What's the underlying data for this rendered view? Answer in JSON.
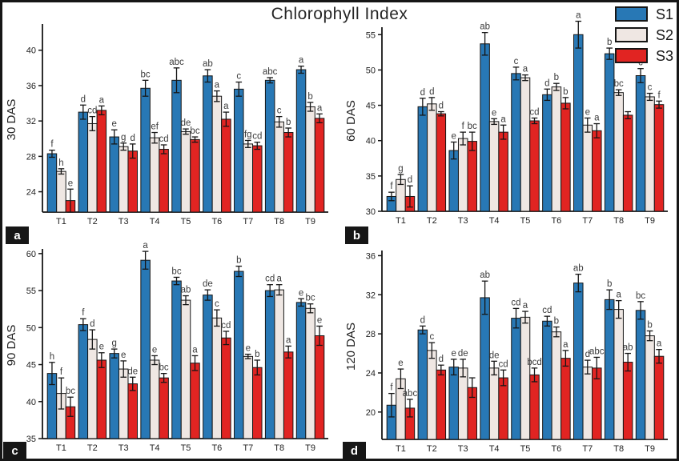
{
  "figure": {
    "title": "Chlorophyll Index"
  },
  "chart_data": {
    "type": "bar",
    "grouped": true,
    "title": "Chlorophyll Index",
    "categories": [
      "T1",
      "T2",
      "T3",
      "T4",
      "T5",
      "T6",
      "T7",
      "T8",
      "T9"
    ],
    "legend": {
      "entries": [
        "S1",
        "S2",
        "S3"
      ],
      "position": "top-right"
    },
    "series_colors": {
      "S1": "#2878B5",
      "S2": "#EFE7E3",
      "S3": "#E12422"
    },
    "error_bars": true,
    "panels": [
      {
        "id": "a",
        "panel_letter": "a",
        "ylabel": "30 DAS",
        "ylim": [
          21.7,
          42.6
        ],
        "yticks": [
          24,
          28,
          32,
          36,
          40
        ],
        "series": [
          {
            "name": "S1",
            "values": [
              28.3,
              33.0,
              30.2,
              35.7,
              36.6,
              37.1,
              35.6,
              36.6,
              37.8
            ],
            "errors": [
              0.4,
              0.8,
              0.8,
              0.9,
              1.4,
              0.7,
              0.8,
              0.3,
              0.4
            ],
            "letters": [
              "f",
              "d",
              "e",
              "bc",
              "abc",
              "ab",
              "c",
              "abc",
              "a"
            ]
          },
          {
            "name": "S2",
            "values": [
              26.3,
              31.7,
              29.1,
              30.1,
              30.8,
              34.8,
              29.4,
              31.9,
              33.6
            ],
            "errors": [
              0.3,
              0.8,
              0.4,
              0.6,
              0.3,
              0.6,
              0.4,
              0.6,
              0.5
            ],
            "letters": [
              "h",
              "cd",
              "g",
              "ef",
              "de",
              "a",
              "fg",
              "c",
              "b"
            ]
          },
          {
            "name": "S3",
            "values": [
              23.0,
              33.2,
              28.6,
              28.8,
              29.9,
              32.2,
              29.2,
              30.7,
              32.3
            ],
            "errors": [
              1.3,
              0.5,
              0.8,
              0.5,
              0.3,
              0.8,
              0.4,
              0.5,
              0.5
            ],
            "letters": [
              "e",
              "a",
              "d",
              "cd",
              "bc",
              "a",
              "cd",
              "b",
              "a"
            ]
          }
        ]
      },
      {
        "id": "b",
        "panel_letter": "b",
        "ylabel": "60 DAS",
        "ylim": [
          30,
          55.6
        ],
        "yticks": [
          30,
          35,
          40,
          45,
          50,
          55
        ],
        "series": [
          {
            "name": "S1",
            "values": [
              32.1,
              44.8,
              38.6,
              53.7,
              49.5,
              46.5,
              55.0,
              52.3,
              49.2
            ],
            "errors": [
              0.6,
              1.2,
              1.2,
              1.6,
              0.9,
              0.8,
              1.9,
              0.8,
              1.0
            ],
            "letters": [
              "f",
              "d",
              "e",
              "ab",
              "c",
              "d",
              "a",
              "b",
              "c"
            ]
          },
          {
            "name": "S2",
            "values": [
              34.5,
              45.2,
              40.3,
              42.7,
              48.9,
              47.6,
              42.2,
              46.8,
              46.2
            ],
            "errors": [
              0.7,
              0.9,
              0.9,
              0.4,
              0.4,
              0.5,
              1.0,
              0.4,
              0.5
            ],
            "letters": [
              "g",
              "d",
              "f",
              "e",
              "a",
              "b",
              "e",
              "bc",
              "c"
            ]
          },
          {
            "name": "S3",
            "values": [
              32.1,
              43.8,
              39.9,
              41.2,
              42.8,
              45.3,
              41.4,
              43.6,
              45.1
            ],
            "errors": [
              1.5,
              0.3,
              1.3,
              1.0,
              0.4,
              0.8,
              1.0,
              0.5,
              0.5
            ],
            "letters": [
              "d",
              "d",
              "bc",
              "a",
              "cd",
              "b",
              "a",
              "",
              "f"
            ]
          }
        ]
      },
      {
        "id": "c",
        "panel_letter": "c",
        "ylabel": "90 DAS",
        "ylim": [
          35,
          60.2
        ],
        "yticks": [
          35,
          40,
          45,
          50,
          55,
          60
        ],
        "series": [
          {
            "name": "S1",
            "values": [
              43.8,
              50.4,
              46.5,
              59.1,
              56.3,
              54.4,
              57.6,
              55.0,
              53.4
            ],
            "errors": [
              1.5,
              0.8,
              0.6,
              1.2,
              0.5,
              0.7,
              0.7,
              0.8,
              0.5
            ],
            "letters": [
              "h",
              "f",
              "g",
              "a",
              "bc",
              "de",
              "b",
              "cd",
              "e"
            ]
          },
          {
            "name": "S2",
            "values": [
              41.1,
              48.4,
              44.4,
              45.6,
              53.7,
              51.3,
              46.1,
              55.1,
              52.6
            ],
            "errors": [
              2.1,
              1.3,
              1.1,
              0.6,
              0.6,
              1.1,
              0.3,
              0.7,
              0.6
            ],
            "letters": [
              "f",
              "d",
              "e",
              "e",
              "ab",
              "c",
              "e",
              "a",
              "bc"
            ]
          },
          {
            "name": "S3",
            "values": [
              39.3,
              45.6,
              42.4,
              43.2,
              45.2,
              48.6,
              44.6,
              46.7,
              48.9
            ],
            "errors": [
              1.3,
              1.0,
              0.9,
              0.6,
              1.0,
              0.9,
              1.0,
              0.8,
              1.3
            ],
            "letters": [
              "bc",
              "e",
              "de",
              "bc",
              "a",
              "cd",
              "b",
              "a",
              "e"
            ]
          }
        ]
      },
      {
        "id": "d",
        "panel_letter": "d",
        "ylabel": "120 DAS",
        "ylim": [
          17.2,
          36.2
        ],
        "yticks": [
          20,
          24,
          28,
          32,
          36
        ],
        "series": [
          {
            "name": "S1",
            "values": [
              20.7,
              28.4,
              24.6,
              31.7,
              29.6,
              29.3,
              33.2,
              31.5,
              30.4
            ],
            "errors": [
              1.2,
              0.4,
              0.8,
              1.7,
              1.0,
              0.5,
              0.9,
              1.0,
              0.9
            ],
            "letters": [
              "f",
              "d",
              "e",
              "ab",
              "cd",
              "cd",
              "ab",
              "b",
              "bc"
            ]
          },
          {
            "name": "S2",
            "values": [
              23.4,
              26.3,
              24.5,
              24.5,
              29.7,
              28.2,
              24.6,
              30.5,
              27.8
            ],
            "errors": [
              1.0,
              0.8,
              0.9,
              0.7,
              0.6,
              0.5,
              0.7,
              0.9,
              0.5
            ],
            "letters": [
              "e",
              "c",
              "de",
              "de",
              "a",
              "b",
              "d",
              "a",
              "b"
            ]
          },
          {
            "name": "S3",
            "values": [
              20.4,
              24.3,
              22.5,
              23.5,
              23.8,
              25.5,
              24.5,
              25.1,
              25.7
            ],
            "errors": [
              0.9,
              0.5,
              1.0,
              0.8,
              0.7,
              0.8,
              1.1,
              0.9,
              0.7
            ],
            "letters": [
              "abc",
              "d",
              "",
              "cd",
              "bcd",
              "a",
              "abc",
              "ab",
              "a"
            ]
          }
        ]
      }
    ]
  }
}
